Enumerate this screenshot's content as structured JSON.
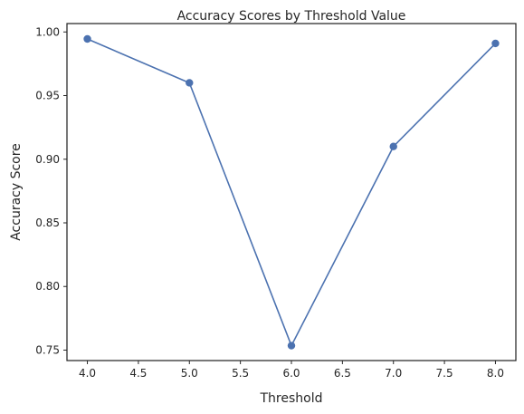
{
  "chart_data": {
    "type": "line",
    "title": "Accuracy Scores by Threshold Value",
    "xlabel": "Threshold",
    "ylabel": "Accuracy Score",
    "xlim": [
      3.8,
      8.2
    ],
    "ylim": [
      0.7418,
      1.0066
    ],
    "x_ticks": [
      4.0,
      4.5,
      5.0,
      5.5,
      6.0,
      6.5,
      7.0,
      7.5,
      8.0
    ],
    "x_tick_labels": [
      "4.0",
      "4.5",
      "5.0",
      "5.5",
      "6.0",
      "6.5",
      "7.0",
      "7.5",
      "8.0"
    ],
    "y_ticks": [
      0.75,
      0.8,
      0.85,
      0.9,
      0.95,
      1.0
    ],
    "y_tick_labels": [
      "0.75",
      "0.80",
      "0.85",
      "0.90",
      "0.95",
      "1.00"
    ],
    "grid": false,
    "series": [
      {
        "x": [
          4.0,
          5.0,
          6.0,
          7.0,
          8.0
        ],
        "y": [
          0.9945,
          0.96,
          0.7535,
          0.91,
          0.991
        ],
        "color": "#4c72b0",
        "marker": "circle"
      }
    ]
  }
}
